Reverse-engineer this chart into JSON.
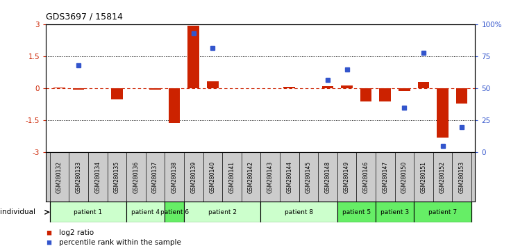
{
  "title": "GDS3697 / 15814",
  "samples": [
    "GSM280132",
    "GSM280133",
    "GSM280134",
    "GSM280135",
    "GSM280136",
    "GSM280137",
    "GSM280138",
    "GSM280139",
    "GSM280140",
    "GSM280141",
    "GSM280142",
    "GSM280143",
    "GSM280144",
    "GSM280145",
    "GSM280148",
    "GSM280149",
    "GSM280146",
    "GSM280147",
    "GSM280150",
    "GSM280151",
    "GSM280152",
    "GSM280153"
  ],
  "log2_ratio": [
    0.05,
    -0.05,
    0.0,
    -0.5,
    0.0,
    -0.05,
    -1.6,
    2.95,
    0.35,
    0.0,
    0.0,
    0.0,
    0.07,
    0.0,
    0.12,
    0.15,
    -0.6,
    -0.6,
    -0.1,
    0.3,
    -2.3,
    -0.7
  ],
  "percentile": [
    null,
    68,
    null,
    null,
    null,
    null,
    null,
    93,
    82,
    null,
    null,
    null,
    null,
    null,
    57,
    65,
    null,
    null,
    35,
    78,
    5,
    20
  ],
  "patients": [
    {
      "label": "patient 1",
      "start": 0,
      "end": 4,
      "color": "#ccffcc"
    },
    {
      "label": "patient 4",
      "start": 4,
      "end": 6,
      "color": "#ccffcc"
    },
    {
      "label": "patient 6",
      "start": 6,
      "end": 7,
      "color": "#66ee66"
    },
    {
      "label": "patient 2",
      "start": 7,
      "end": 11,
      "color": "#ccffcc"
    },
    {
      "label": "patient 8",
      "start": 11,
      "end": 15,
      "color": "#ccffcc"
    },
    {
      "label": "patient 5",
      "start": 15,
      "end": 17,
      "color": "#66ee66"
    },
    {
      "label": "patient 3",
      "start": 17,
      "end": 19,
      "color": "#66ee66"
    },
    {
      "label": "patient 7",
      "start": 19,
      "end": 22,
      "color": "#66ee66"
    }
  ],
  "ylim_left": [
    -3,
    3
  ],
  "ylim_right": [
    0,
    100
  ],
  "yticks_left": [
    -3,
    -1.5,
    0,
    1.5,
    3
  ],
  "yticks_right": [
    0,
    25,
    50,
    75,
    100
  ],
  "ytick_labels_left": [
    "-3",
    "-1.5",
    "0",
    "1.5",
    "3"
  ],
  "ytick_labels_right": [
    "0",
    "25",
    "50",
    "75",
    "100%"
  ],
  "hlines_dotted": [
    1.5,
    -1.5
  ],
  "bar_color": "#cc2200",
  "dot_color": "#3355cc",
  "zero_line_color": "#cc2200",
  "bg_color": "#ffffff",
  "gsm_bg_color": "#cccccc",
  "individual_label": "individual",
  "legend_items": [
    {
      "color": "#cc2200",
      "label": "log2 ratio"
    },
    {
      "color": "#3355cc",
      "label": "percentile rank within the sample"
    }
  ]
}
